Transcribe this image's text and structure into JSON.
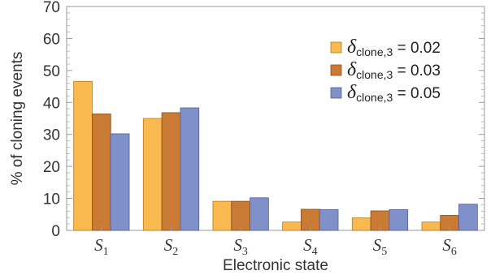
{
  "chart_data": {
    "type": "bar",
    "xlabel": "Electronic state",
    "ylabel": "% of cloning events",
    "ylim": [
      0,
      70
    ],
    "yticks": [
      "0",
      "10",
      "20",
      "30",
      "40",
      "50",
      "60",
      "70"
    ],
    "categories": [
      {
        "base": "S",
        "sub": "1"
      },
      {
        "base": "S",
        "sub": "2"
      },
      {
        "base": "S",
        "sub": "3"
      },
      {
        "base": "S",
        "sub": "4"
      },
      {
        "base": "S",
        "sub": "5"
      },
      {
        "base": "S",
        "sub": "6"
      }
    ],
    "series": [
      {
        "name": {
          "symbol": "δ",
          "sub": "clone,3",
          "rest": " = 0.02"
        },
        "color": "#f9b94f",
        "stroke": "#b07a1e",
        "values": [
          46.6,
          35.0,
          9.1,
          2.6,
          3.9,
          2.6
        ]
      },
      {
        "name": {
          "symbol": "δ",
          "sub": "clone,3",
          "rest": " = 0.03"
        },
        "color": "#c97a35",
        "stroke": "#8a4e1c",
        "values": [
          36.4,
          36.8,
          9.1,
          6.6,
          6.1,
          4.7
        ]
      },
      {
        "name": {
          "symbol": "δ",
          "sub": "clone,3",
          "rest": " = 0.05"
        },
        "color": "#8090c8",
        "stroke": "#54609a",
        "values": [
          30.2,
          38.3,
          10.2,
          6.5,
          6.5,
          8.2
        ]
      }
    ],
    "legend_position": "top-right",
    "grid": false
  }
}
